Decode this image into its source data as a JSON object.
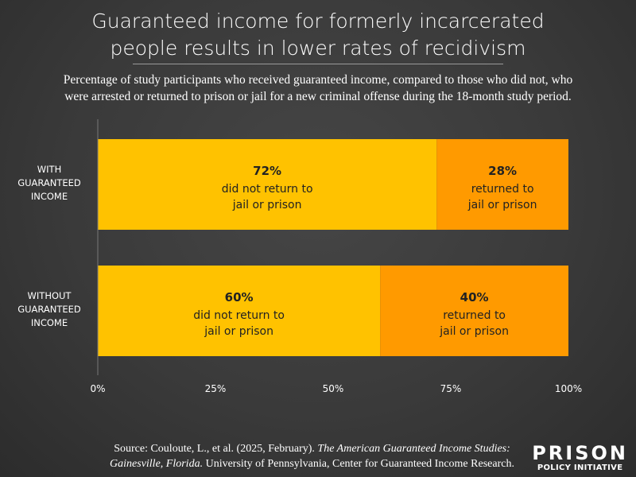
{
  "title_lines": [
    "Guaranteed income for formerly incarcerated",
    "people results in lower rates of recidivism"
  ],
  "subtitle_lines": [
    "Percentage of study participants who received guaranteed income, compared to those who did not, who",
    "were arrested or returned to prison or jail for a new criminal offense during the 18-month study period."
  ],
  "source": {
    "prefix": "Source: Couloute, L., et al. (2025, February). ",
    "italic": "The American Guaranteed Income Studies: Gainesville, Florida.",
    "suffix": " University of Pennsylvania, Center for Guaranteed Income Research."
  },
  "logo": {
    "line1": "PRISON",
    "line2": "POLICY INITIATIVE"
  },
  "chart_data": {
    "type": "bar",
    "orientation": "horizontal",
    "stacked": true,
    "categories": [
      [
        "WITH",
        "GUARANTEED",
        "INCOME"
      ],
      [
        "WITHOUT",
        "GUARANTEED",
        "INCOME"
      ]
    ],
    "series": [
      {
        "name": "did not return to jail or prison",
        "values": [
          72,
          60
        ],
        "color": "#FFC200",
        "label_lines": [
          "did not return to",
          "jail or prison"
        ]
      },
      {
        "name": "returned to jail or prison",
        "values": [
          28,
          40
        ],
        "color": "#FF9A00",
        "label_lines": [
          "returned to",
          "jail or prison"
        ]
      }
    ],
    "xlim": [
      0,
      100
    ],
    "xticks": [
      "0%",
      "25%",
      "50%",
      "75%",
      "100%"
    ],
    "grid": false
  }
}
